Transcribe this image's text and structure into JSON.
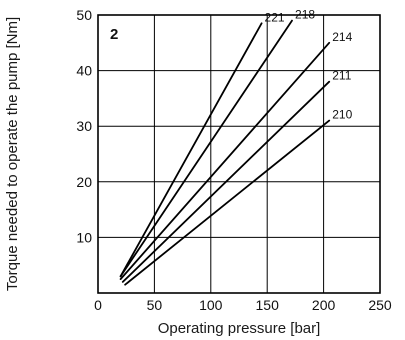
{
  "chart_data": {
    "type": "line",
    "panel_label": "2",
    "xlabel": "Operating pressure [bar]",
    "ylabel": "Torque needed to operate the pump [Nm]",
    "xlim": [
      0,
      250
    ],
    "ylim": [
      0,
      50
    ],
    "x_ticks": [
      "0",
      "50",
      "100",
      "150",
      "200",
      "250"
    ],
    "y_ticks": [
      "10",
      "20",
      "30",
      "40",
      "50"
    ],
    "grid": true,
    "legend": "labels at line ends",
    "series": [
      {
        "name": "221",
        "x": [
          20,
          145
        ],
        "y": [
          3,
          48.5
        ]
      },
      {
        "name": "218",
        "x": [
          20,
          172
        ],
        "y": [
          3,
          49
        ]
      },
      {
        "name": "214",
        "x": [
          20,
          205
        ],
        "y": [
          2.5,
          45
        ]
      },
      {
        "name": "211",
        "x": [
          22,
          205
        ],
        "y": [
          2,
          38
        ]
      },
      {
        "name": "210",
        "x": [
          24,
          205
        ],
        "y": [
          1.5,
          31
        ]
      }
    ]
  }
}
